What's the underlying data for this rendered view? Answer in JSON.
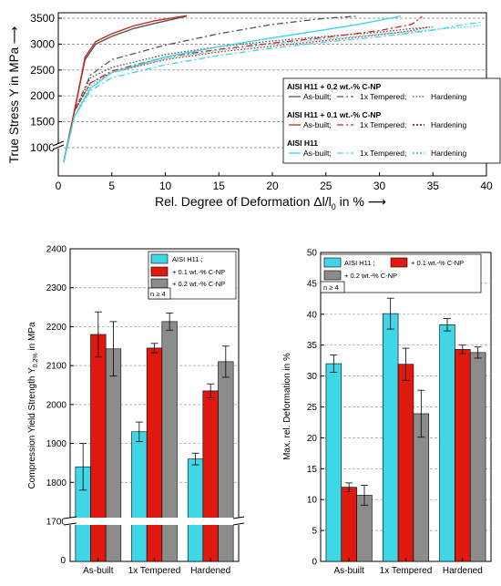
{
  "colors": {
    "h11": "#3fd6e6",
    "c01": "#e0190f",
    "c02": "#8c8c8c",
    "c02_line": "#555555",
    "c01_line": "#c8281e"
  },
  "chart_data": [
    {
      "type": "line",
      "ylabel": "True Stress Y in MPa",
      "xlabel": "Rel. Degree of Deformation Δl/l",
      "xlabel_sub": "0",
      "xlabel_unit": " in %",
      "xlim": [
        0,
        40
      ],
      "ylim_upper": [
        1000,
        3500
      ],
      "xticks": [
        "0",
        "5",
        "10",
        "15",
        "20",
        "25",
        "30",
        "35",
        "40"
      ],
      "yticks": [
        "1000",
        "1500",
        "2000",
        "2500",
        "3000",
        "3500"
      ],
      "y_break": true,
      "legend": {
        "group1_title": "AISI H11 + 0.2 wt.-% C-NP",
        "group2_title": "AISI H11 + 0.1 wt.-% C-NP",
        "group3_title": "AISI H11",
        "asbuilt": "As-built;",
        "tempered": "1x Tempered;",
        "hardening": "Hardening"
      },
      "series": [
        {
          "material": "c02",
          "condition": "as-built",
          "x": [
            0.5,
            1.5,
            2.5,
            3.5,
            5,
            7,
            9,
            12
          ],
          "y": [
            500,
            1700,
            2700,
            3000,
            3150,
            3300,
            3400,
            3540
          ]
        },
        {
          "material": "c02",
          "condition": "tempered",
          "x": [
            0.5,
            1.5,
            3,
            5,
            10,
            15,
            20,
            25,
            28
          ],
          "y": [
            500,
            1700,
            2400,
            2700,
            2980,
            3200,
            3380,
            3500,
            3540
          ]
        },
        {
          "material": "c02",
          "condition": "hardening",
          "x": [
            0.5,
            1.5,
            3,
            5,
            10,
            15,
            20,
            25,
            30,
            33,
            35
          ],
          "y": [
            500,
            1700,
            2350,
            2550,
            2800,
            2950,
            3060,
            3150,
            3230,
            3300,
            3330
          ]
        },
        {
          "material": "c01",
          "condition": "as-built",
          "x": [
            0.5,
            1.5,
            2.5,
            3.5,
            5,
            7,
            9,
            12
          ],
          "y": [
            500,
            1700,
            2750,
            3050,
            3200,
            3350,
            3450,
            3550
          ]
        },
        {
          "material": "c01",
          "condition": "tempered",
          "x": [
            0.5,
            1.5,
            3,
            5,
            10,
            15,
            20,
            25,
            30,
            33,
            34
          ],
          "y": [
            500,
            1700,
            2250,
            2480,
            2750,
            2900,
            3020,
            3130,
            3260,
            3380,
            3530
          ]
        },
        {
          "material": "c01",
          "condition": "hardening",
          "x": [
            0.5,
            1.5,
            3,
            5,
            10,
            15,
            20,
            25,
            30,
            33,
            34.5
          ],
          "y": [
            500,
            1700,
            2250,
            2450,
            2700,
            2850,
            2960,
            3070,
            3180,
            3260,
            3330
          ]
        },
        {
          "material": "h11",
          "condition": "as-built",
          "x": [
            0.5,
            1.5,
            3,
            5,
            10,
            15,
            20,
            25,
            28,
            30,
            31,
            32
          ],
          "y": [
            500,
            1600,
            2150,
            2450,
            2750,
            2950,
            3120,
            3280,
            3380,
            3460,
            3500,
            3540
          ]
        },
        {
          "material": "h11",
          "condition": "tempered",
          "x": [
            0.5,
            1.5,
            3,
            5,
            10,
            15,
            20,
            25,
            30,
            35,
            38,
            39.5
          ],
          "y": [
            500,
            1600,
            2100,
            2350,
            2600,
            2780,
            2920,
            3040,
            3140,
            3270,
            3380,
            3420
          ]
        },
        {
          "material": "h11",
          "condition": "hardening",
          "x": [
            0.5,
            1.5,
            3,
            5,
            10,
            15,
            20,
            25,
            30,
            35,
            38,
            39.5
          ],
          "y": [
            500,
            1600,
            2200,
            2450,
            2720,
            2880,
            3000,
            3100,
            3190,
            3280,
            3330,
            3360
          ]
        }
      ]
    },
    {
      "type": "bar",
      "ylabel": "Compression Yield Strength Y",
      "ylabel_sub": "0.2%",
      "ylabel_unit": " in MPa",
      "categories": [
        "As-built",
        "1x Tempered",
        "Hardened"
      ],
      "ylim": [
        1700,
        2400
      ],
      "yticks": [
        "1700",
        "1800",
        "1900",
        "2000",
        "2100",
        "2200",
        "2300",
        "2400"
      ],
      "y_break_label": "0",
      "note": "n ≥ 4",
      "legend_labels": [
        "AISI H11 ;",
        "+ 0.1 wt.-% C-NP",
        "+ 0.2 wt.-% C-NP"
      ],
      "series": [
        {
          "material": "h11",
          "values": [
            1840,
            1930,
            1860
          ],
          "errors": [
            60,
            25,
            15
          ]
        },
        {
          "material": "c01",
          "values": [
            2180,
            2145,
            2035
          ],
          "errors": [
            58,
            12,
            18
          ]
        },
        {
          "material": "c02",
          "values": [
            2143,
            2213,
            2110
          ],
          "errors": [
            70,
            22,
            40
          ]
        }
      ]
    },
    {
      "type": "bar",
      "ylabel": "Max. rel. Deformation in %",
      "categories": [
        "As-built",
        "1x Tempered",
        "Hardened"
      ],
      "ylim": [
        0,
        50
      ],
      "yticks": [
        "0",
        "5",
        "10",
        "15",
        "20",
        "25",
        "30",
        "35",
        "40",
        "45",
        "50"
      ],
      "note": "n ≥ 4",
      "legend_labels": [
        "AISI H11 ;",
        "+ 0.1 wt.-% C-NP",
        "+ 0.2 wt.-% C-NP"
      ],
      "series": [
        {
          "material": "h11",
          "values": [
            32,
            40.1,
            38.3
          ],
          "errors": [
            1.4,
            2.5,
            1.0
          ]
        },
        {
          "material": "c01",
          "values": [
            12,
            31.9,
            34.3
          ],
          "errors": [
            0.7,
            2.6,
            0.7
          ]
        },
        {
          "material": "c02",
          "values": [
            10.7,
            23.9,
            33.8
          ],
          "errors": [
            1.6,
            3.8,
            0.9
          ]
        }
      ]
    }
  ]
}
